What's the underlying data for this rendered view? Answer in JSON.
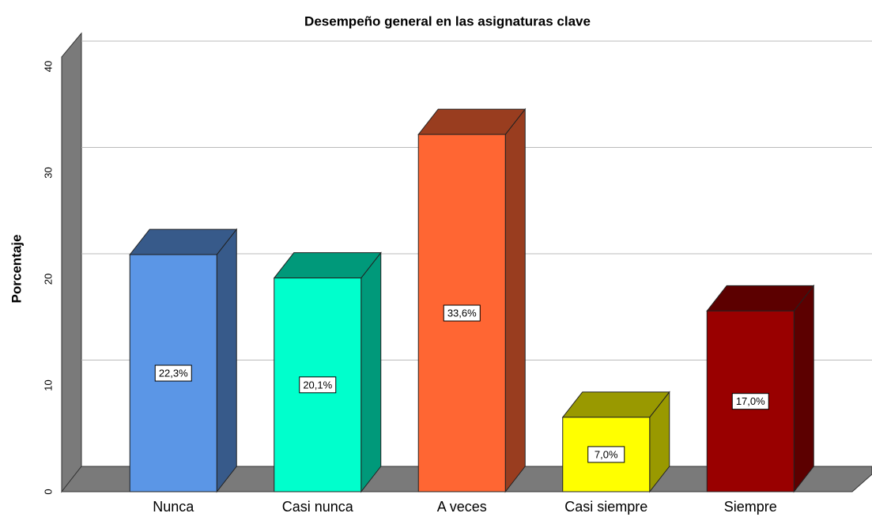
{
  "chart_data": {
    "type": "bar3d",
    "title": "Desempeño general en las asignaturas clave",
    "y_label": "Porcentaje",
    "categories": [
      "Nunca",
      "Casi nunca",
      "A veces",
      "Casi siempre",
      "Siempre"
    ],
    "values": [
      22.3,
      20.1,
      33.6,
      7.0,
      17.0
    ],
    "value_labels": [
      "22,3%",
      "20,1%",
      "33,6%",
      "7,0%",
      "17,0%"
    ],
    "colors": [
      "#5b96e6",
      "#00ffcc",
      "#ff6633",
      "#ffff00",
      "#990000"
    ],
    "ylim": [
      0,
      40
    ],
    "yticks": [
      0,
      10,
      20,
      30,
      40
    ],
    "grid": true
  }
}
